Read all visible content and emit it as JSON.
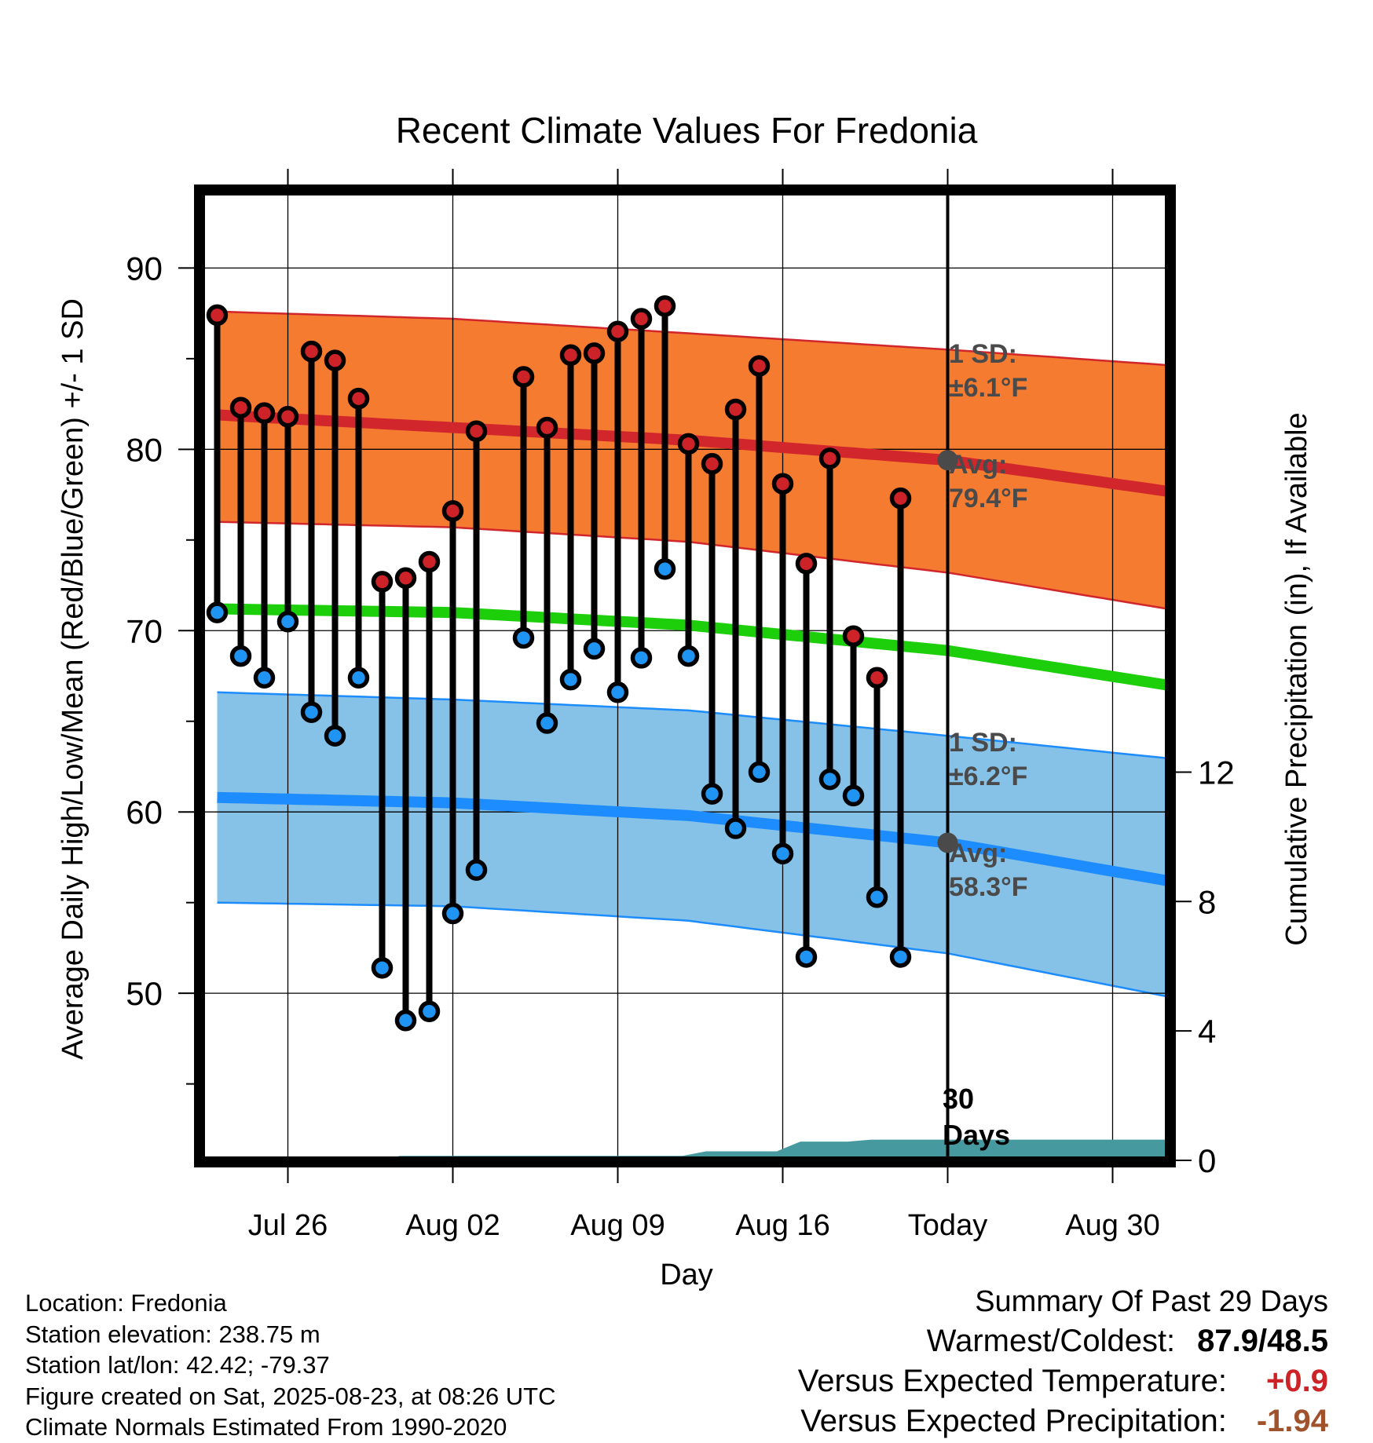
{
  "chart_data": {
    "type": "line",
    "title": "Recent Climate Values For Fredonia",
    "xlabel": "Day",
    "ylabel": "Average Daily High/Low/Mean (Red/Blue/Green) +/- 1 SD",
    "y2label": "Cumulative Precipitation (in), If Available",
    "ylim": [
      41,
      94
    ],
    "y2lim": [
      0,
      29.7
    ],
    "x_start": "Jul 23",
    "x_end": "Sep 2",
    "x_tick_labels": [
      "Jul 26",
      "Aug 02",
      "Aug 09",
      "Aug 16",
      "Today",
      "Aug 30"
    ],
    "x_tick_days": [
      3,
      10,
      17,
      24,
      31,
      38
    ],
    "y_ticks": [
      50,
      60,
      70,
      80,
      90
    ],
    "y_minor_ticks": [
      45,
      55,
      65,
      75,
      85
    ],
    "y2_ticks": [
      0,
      4,
      8,
      12
    ],
    "grid": true,
    "today_day": 31,
    "dates": [
      "Jul 23",
      "Jul 24",
      "Jul 25",
      "Jul 26",
      "Jul 27",
      "Jul 28",
      "Jul 29",
      "Jul 30",
      "Jul 31",
      "Aug 01",
      "Aug 02",
      "Aug 03",
      "Aug 04",
      "Aug 05",
      "Aug 06",
      "Aug 07",
      "Aug 08",
      "Aug 09",
      "Aug 10",
      "Aug 11",
      "Aug 12",
      "Aug 13",
      "Aug 14",
      "Aug 15",
      "Aug 16",
      "Aug 17",
      "Aug 18",
      "Aug 19",
      "Aug 20",
      "Aug 21",
      "Aug 22"
    ],
    "daily_high": [
      87.4,
      82.3,
      82.0,
      81.8,
      85.4,
      84.9,
      82.8,
      72.7,
      72.9,
      73.8,
      76.6,
      81.0,
      null,
      84.0,
      81.2,
      85.2,
      85.3,
      86.5,
      87.2,
      87.9,
      80.3,
      79.2,
      82.2,
      84.6,
      78.1,
      73.7,
      79.5,
      69.7,
      67.4,
      77.3,
      null
    ],
    "daily_low": [
      71.0,
      68.6,
      67.4,
      70.5,
      65.5,
      64.2,
      67.4,
      51.4,
      48.5,
      49.0,
      54.4,
      56.8,
      null,
      69.6,
      64.9,
      67.3,
      69.0,
      66.6,
      68.5,
      73.4,
      68.6,
      61.0,
      59.1,
      62.2,
      57.7,
      52.0,
      61.8,
      60.9,
      55.3,
      52.0,
      null
    ],
    "normal_high": [
      {
        "x": 0,
        "y": 81.9
      },
      {
        "x": 10,
        "y": 81.2
      },
      {
        "x": 20,
        "y": 80.5
      },
      {
        "x": 31,
        "y": 79.4
      },
      {
        "x": 40.8,
        "y": 77.6
      }
    ],
    "normal_high_upper": [
      {
        "x": 0,
        "y": 87.6
      },
      {
        "x": 10,
        "y": 87.2
      },
      {
        "x": 20,
        "y": 86.4
      },
      {
        "x": 31,
        "y": 85.5
      },
      {
        "x": 40.8,
        "y": 84.6
      }
    ],
    "normal_high_lower": [
      {
        "x": 0,
        "y": 76.0
      },
      {
        "x": 10,
        "y": 75.7
      },
      {
        "x": 20,
        "y": 74.9
      },
      {
        "x": 31,
        "y": 73.2
      },
      {
        "x": 40.8,
        "y": 71.1
      }
    ],
    "normal_mean": [
      {
        "x": 0,
        "y": 71.2
      },
      {
        "x": 10,
        "y": 71.0
      },
      {
        "x": 20,
        "y": 70.3
      },
      {
        "x": 31,
        "y": 68.9
      },
      {
        "x": 40.8,
        "y": 66.9
      }
    ],
    "normal_low": [
      {
        "x": 0,
        "y": 60.8
      },
      {
        "x": 10,
        "y": 60.5
      },
      {
        "x": 20,
        "y": 59.8
      },
      {
        "x": 31,
        "y": 58.3
      },
      {
        "x": 40.8,
        "y": 56.1
      }
    ],
    "normal_low_upper": [
      {
        "x": 0,
        "y": 66.6
      },
      {
        "x": 10,
        "y": 66.2
      },
      {
        "x": 20,
        "y": 65.6
      },
      {
        "x": 31,
        "y": 64.2
      },
      {
        "x": 40.8,
        "y": 62.9
      }
    ],
    "normal_low_lower": [
      {
        "x": 0,
        "y": 55.0
      },
      {
        "x": 10,
        "y": 54.8
      },
      {
        "x": 20,
        "y": 54.0
      },
      {
        "x": 31,
        "y": 52.2
      },
      {
        "x": 40.8,
        "y": 49.7
      }
    ],
    "cumulative_precip": [
      {
        "x": 0,
        "y": 0
      },
      {
        "x": 7,
        "y": 0
      },
      {
        "x": 7.75,
        "y": 0.14
      },
      {
        "x": 19.75,
        "y": 0.14
      },
      {
        "x": 20.75,
        "y": 0.28
      },
      {
        "x": 23.75,
        "y": 0.28
      },
      {
        "x": 24.75,
        "y": 0.58
      },
      {
        "x": 26.75,
        "y": 0.58
      },
      {
        "x": 27.75,
        "y": 0.64
      },
      {
        "x": 40.8,
        "y": 0.64
      }
    ],
    "annotations": {
      "high_sd_label": "1 SD:",
      "high_sd_value": "±6.1°F",
      "high_avg_label": "Avg:",
      "high_avg_value": "79.4°F",
      "low_sd_label": "1 SD:",
      "low_sd_value": "±6.2°F",
      "low_avg_label": "Avg:",
      "low_avg_value": "58.3°F",
      "precip_label_1": "30",
      "precip_label_2": "Days"
    },
    "colors": {
      "high_band": "#f47b30",
      "high_line": "#d0262c",
      "mean_line": "#1dcf0b",
      "low_band": "#86c2e8",
      "low_line": "#1d8cff",
      "precip": "#46999e",
      "high_marker": "#cd2227",
      "low_marker": "#2094f3",
      "annotation_text": "#4a4a4a"
    }
  },
  "info": {
    "location": "Location: Fredonia",
    "elevation": "Station elevation: 238.75 m",
    "latlon": "Station lat/lon: 42.42; -79.37",
    "created": "Figure created on Sat, 2025-08-23, at 08:26 UTC",
    "normals": "Climate Normals Estimated From 1990-2020"
  },
  "summary": {
    "title": "Summary Of Past 29 Days",
    "warm_cold_label": "Warmest/Coldest:",
    "warm_cold_value": "87.9/48.5",
    "temp_label": "Versus Expected Temperature:",
    "temp_value": "+0.9",
    "temp_color": "#cd2227",
    "precip_label": "Versus Expected Precipitation:",
    "precip_value": "-1.94",
    "precip_color": "#a0522d"
  }
}
